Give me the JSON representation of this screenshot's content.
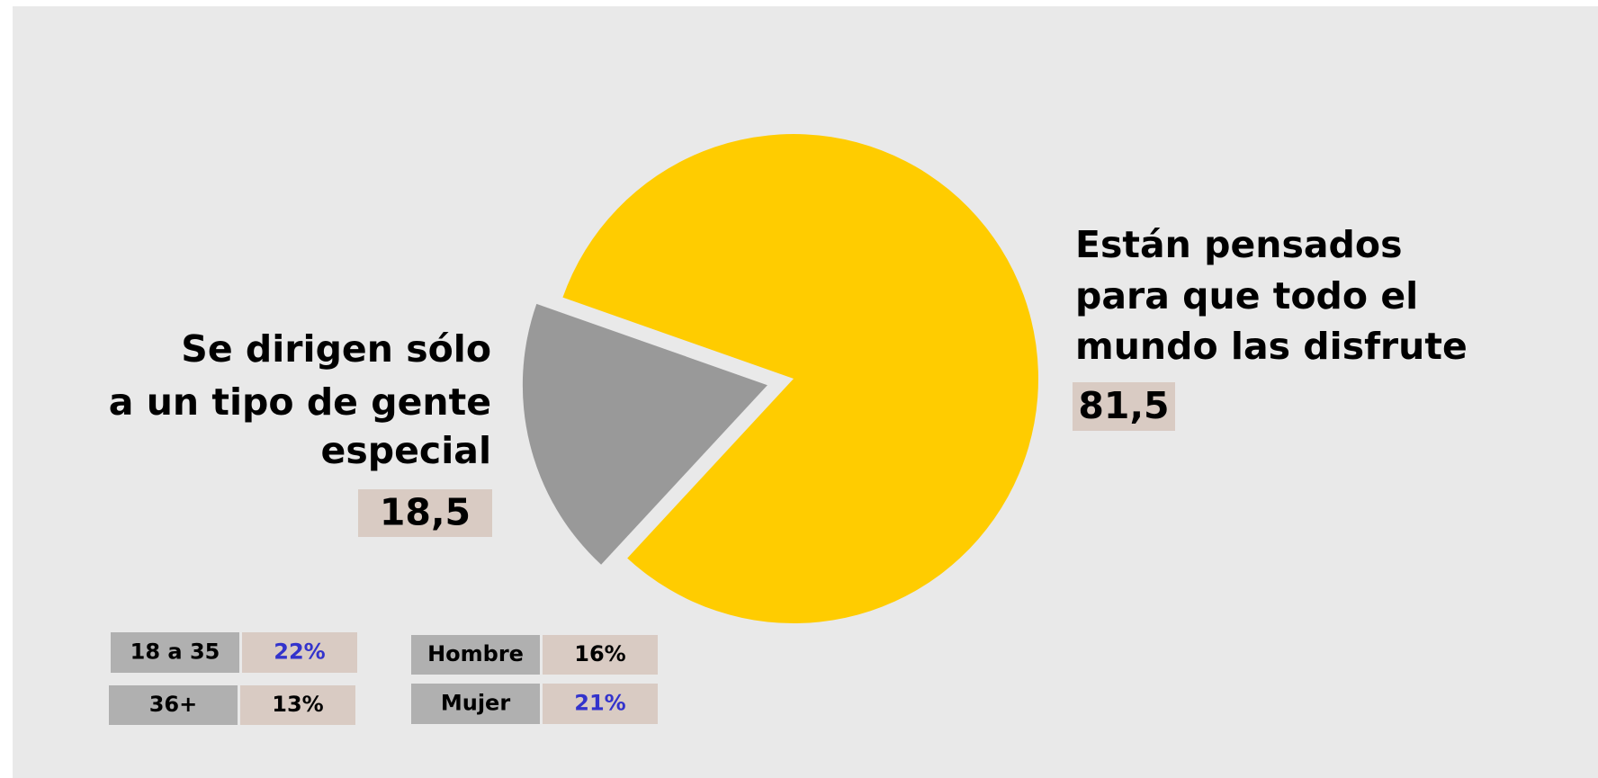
{
  "chart_data": {
    "type": "pie",
    "categories": [
      [
        "Están pensados",
        "para que todo el",
        "mundo  las disfrute"
      ],
      [
        "Se dirigen sólo",
        "a un tipo de gente",
        "especial"
      ]
    ],
    "values": [
      81.5,
      18.5
    ],
    "value_labels": [
      "81,5",
      "18,5"
    ],
    "colors": [
      "#ffcc00",
      "#999999"
    ],
    "exploded": [
      false,
      true
    ]
  },
  "breakdown": [
    {
      "label": "18 a 35",
      "value": "22%",
      "value_color": "#3333cc"
    },
    {
      "label": "36+",
      "value": "13%",
      "value_color": "#000000"
    },
    {
      "label": "Hombre",
      "value": "16%",
      "value_color": "#000000"
    },
    {
      "label": "Mujer",
      "value": "21%",
      "value_color": "#3333cc"
    }
  ]
}
